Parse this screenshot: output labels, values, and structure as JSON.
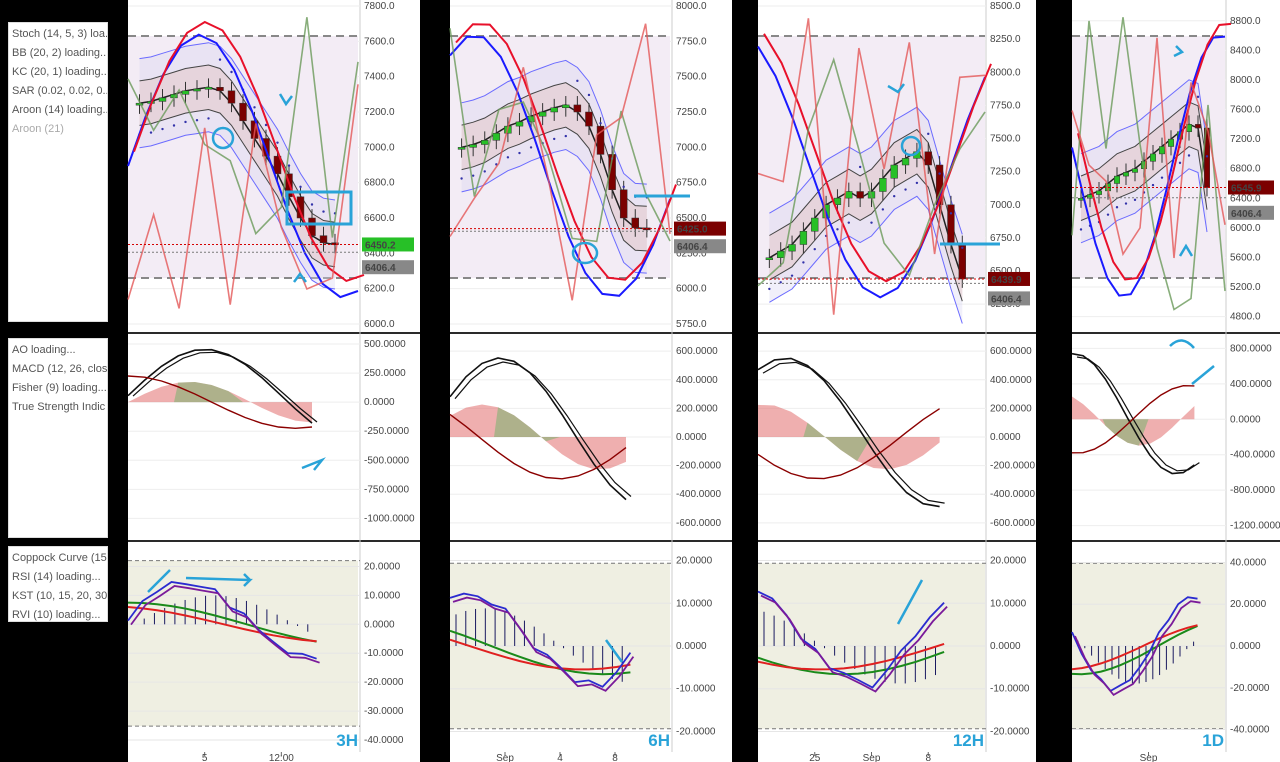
{
  "legend_main": [
    "Stoch (14, 5, 3) loa...",
    "BB (20, 2) loading...",
    "KC (20, 1) loading...",
    "SAR (0.02, 0.02, 0...",
    "Aroon (14) loading...",
    "Aroon (21)"
  ],
  "legend_osc": [
    "AO loading...",
    "MACD (12, 26, clos",
    "Fisher (9) loading...",
    "True Strength Indic"
  ],
  "legend_mom": [
    "Coppock Curve (15",
    "RSI (14) loading...",
    "KST (10, 15, 20, 30",
    "RVI (10) loading..."
  ],
  "colors": {
    "up": "#27c027",
    "down": "#7b0000",
    "stochK": "#1a1aff",
    "stochD": "#e8102a",
    "aroonUp": "#6a9a5a",
    "aroonDn": "#e45858",
    "accent": "#29a3d8",
    "price": "#d40000",
    "ref": "#7a7a7a"
  },
  "chart_data": [
    {
      "type": "line",
      "timeframe": "3H",
      "x_ticks": [
        "5",
        "12:00"
      ],
      "price": {
        "ylim": [
          6000,
          7800
        ],
        "ticks": [
          "7800.0",
          "7600.0",
          "7400.0",
          "7200.0",
          "7000.0",
          "6800.0",
          "6600.0",
          "6400.0",
          "6200.0",
          "6000.0"
        ],
        "last": "6450.2",
        "ref": "6406.4",
        "close": [
          7250,
          7260,
          7280,
          7300,
          7320,
          7330,
          7340,
          7320,
          7250,
          7150,
          7050,
          6950,
          6850,
          6720,
          6600,
          6500,
          6460,
          6450
        ]
      },
      "osc": {
        "ylim": [
          -1100,
          500
        ],
        "ticks": [
          "500.0000",
          "250.0000",
          "0.0000",
          "-250.0000",
          "-500.0000",
          "-750.0000",
          "-1000.0000"
        ]
      },
      "mom": {
        "ylim": [
          -40,
          25
        ],
        "ticks": [
          "20.0000",
          "10.0000",
          "0.0000",
          "-10.0000",
          "-20.0000",
          "-30.0000",
          "-40.0000"
        ]
      }
    },
    {
      "type": "line",
      "timeframe": "6H",
      "x_ticks": [
        "Sep",
        "4",
        "8"
      ],
      "price": {
        "ylim": [
          5750,
          8000
        ],
        "ticks": [
          "8000.0",
          "7750.0",
          "7500.0",
          "7250.0",
          "7000.0",
          "6750.0",
          "6500.0",
          "6250.0",
          "6000.0",
          "5750.0"
        ],
        "last": "6425.0",
        "ref": "6406.4",
        "close": [
          7000,
          7020,
          7050,
          7100,
          7150,
          7180,
          7220,
          7250,
          7280,
          7300,
          7250,
          7150,
          6950,
          6700,
          6500,
          6430,
          6425
        ]
      },
      "osc": {
        "ylim": [
          -650,
          650
        ],
        "ticks": [
          "600.0000",
          "400.0000",
          "200.0000",
          "0.0000",
          "-200.0000",
          "-400.0000",
          "-600.0000"
        ]
      },
      "mom": {
        "ylim": [
          -22,
          22
        ],
        "ticks": [
          "20.0000",
          "10.0000",
          "0.0000",
          "-10.0000",
          "-20.0000"
        ]
      }
    },
    {
      "type": "line",
      "timeframe": "12H",
      "x_ticks": [
        "25",
        "Sep",
        "8"
      ],
      "price": {
        "ylim": [
          6100,
          8500
        ],
        "ticks": [
          "8500.0",
          "8250.0",
          "8000.0",
          "7750.0",
          "7500.0",
          "7250.0",
          "7000.0",
          "6750.0",
          "6500.0",
          "6250.0"
        ],
        "last": "6439.9",
        "ref": "6406.4",
        "close": [
          6600,
          6650,
          6700,
          6800,
          6900,
          7000,
          7050,
          7100,
          7050,
          7100,
          7200,
          7300,
          7350,
          7400,
          7300,
          7000,
          6700,
          6440
        ]
      },
      "osc": {
        "ylim": [
          -650,
          650
        ],
        "ticks": [
          "600.0000",
          "400.0000",
          "200.0000",
          "0.0000",
          "-200.0000",
          "-400.0000",
          "-600.0000"
        ]
      },
      "mom": {
        "ylim": [
          -22,
          22
        ],
        "ticks": [
          "20.0000",
          "10.0000",
          "0.0000",
          "-10.0000",
          "-20.0000"
        ]
      }
    },
    {
      "type": "line",
      "timeframe": "1D",
      "x_ticks": [
        "Sep"
      ],
      "price": {
        "ylim": [
          4700,
          9000
        ],
        "ticks": [
          "8800.0",
          "8400.0",
          "8000.0",
          "7600.0",
          "7200.0",
          "6800.0",
          "6400.0",
          "6000.0",
          "5600.0",
          "5200.0",
          "4800.0"
        ],
        "last": "6545.9",
        "ref": "6406.4",
        "close": [
          6400,
          6450,
          6500,
          6600,
          6700,
          6750,
          6800,
          6900,
          7000,
          7100,
          7200,
          7300,
          7400,
          7350,
          6546
        ]
      },
      "osc": {
        "ylim": [
          -1250,
          850
        ],
        "ticks": [
          "800.0000",
          "400.0000",
          "0.0000",
          "-400.0000",
          "-800.0000",
          "-1200.0000"
        ]
      },
      "mom": {
        "ylim": [
          -45,
          45
        ],
        "ticks": [
          "40.0000",
          "20.0000",
          "0.0000",
          "-20.0000",
          "-40.0000"
        ]
      }
    }
  ]
}
